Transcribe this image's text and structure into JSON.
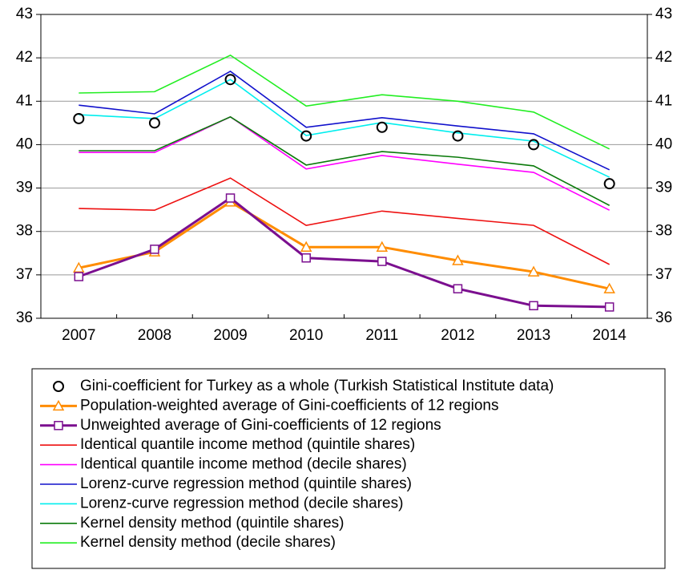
{
  "chart_data": {
    "type": "line",
    "categories": [
      "2007",
      "2008",
      "2009",
      "2010",
      "2011",
      "2012",
      "2013",
      "2014"
    ],
    "ylim": [
      36,
      43
    ],
    "yticks": [
      36,
      37,
      38,
      39,
      40,
      41,
      42,
      43
    ],
    "grid": true,
    "right_axis": true,
    "legend": "bottom",
    "series": [
      {
        "name": "Gini-coefficient for Turkey as a whole (Turkish Statistical Institute data)",
        "color": "#000000",
        "marker": "circle",
        "line": false,
        "values": [
          40.6,
          40.5,
          41.5,
          40.2,
          40.4,
          40.2,
          40.0,
          39.1
        ]
      },
      {
        "name": "Population-weighted average of Gini-coefficients of 12 regions",
        "color": "#ff8c00",
        "marker": "triangle",
        "line": true,
        "values": [
          37.16,
          37.53,
          38.68,
          37.64,
          37.64,
          37.33,
          37.07,
          36.68
        ]
      },
      {
        "name": "Unweighted average of Gini-coefficients of 12 regions",
        "color": "#7b0f8f",
        "marker": "square",
        "line": true,
        "values": [
          36.96,
          37.59,
          38.77,
          37.39,
          37.31,
          36.68,
          36.29,
          36.26
        ]
      },
      {
        "name": "Identical quantile income method (quintile shares)",
        "color": "#ee1111",
        "marker": null,
        "line": true,
        "values": [
          38.53,
          38.49,
          39.23,
          38.14,
          38.47,
          38.3,
          38.14,
          37.24
        ]
      },
      {
        "name": "Identical quantile income method (decile shares)",
        "color": "#ff00ff",
        "marker": null,
        "line": true,
        "values": [
          39.82,
          39.82,
          40.64,
          39.44,
          39.75,
          39.55,
          39.36,
          38.49
        ]
      },
      {
        "name": "Lorenz-curve regression method (quintile shares)",
        "color": "#1111cc",
        "marker": null,
        "line": true,
        "values": [
          40.91,
          40.71,
          41.69,
          40.4,
          40.62,
          40.43,
          40.25,
          39.42
        ]
      },
      {
        "name": "Lorenz-curve regression method (decile shares)",
        "color": "#00eeee",
        "marker": null,
        "line": true,
        "values": [
          40.69,
          40.6,
          41.5,
          40.21,
          40.51,
          40.27,
          40.08,
          39.25
        ]
      },
      {
        "name": "Kernel density method (quintile shares)",
        "color": "#0a7a0a",
        "marker": null,
        "line": true,
        "values": [
          39.86,
          39.86,
          40.64,
          39.53,
          39.84,
          39.71,
          39.51,
          38.6
        ]
      },
      {
        "name": "Kernel density method (decile shares)",
        "color": "#22ee22",
        "marker": null,
        "line": true,
        "values": [
          41.19,
          41.22,
          42.06,
          40.89,
          41.15,
          41.0,
          40.75,
          39.9
        ]
      }
    ]
  }
}
